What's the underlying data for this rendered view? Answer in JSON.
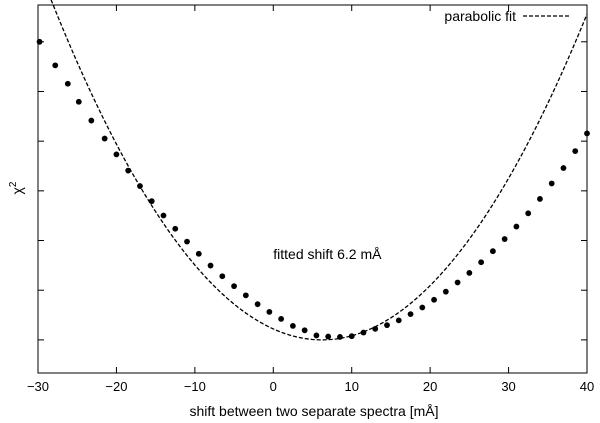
{
  "chart_data": {
    "type": "scatter",
    "title": "",
    "xlabel": "shift between two separate spectra [mÅ]",
    "ylabel_base": "χ",
    "ylabel_sup": "2",
    "xlim": [
      -30,
      40
    ],
    "ylim": [
      0,
      1
    ],
    "x_ticks": [
      -30,
      -20,
      -10,
      0,
      10,
      20,
      30,
      40
    ],
    "x_tick_labels": [
      "−30",
      "−20",
      "−10",
      "0",
      "10",
      "20",
      "30",
      "40"
    ],
    "y_ticks": [
      0.09,
      0.225,
      0.36,
      0.495,
      0.63,
      0.765,
      0.9
    ],
    "y_tick_labels_shown": false,
    "grid": false,
    "legend": {
      "position": "top-right",
      "entries": [
        {
          "label": "parabolic fit",
          "style": "dashed-line"
        }
      ]
    },
    "annotation": {
      "text": "fitted shift 6.2 mÅ",
      "x": 0,
      "y": 0.31
    },
    "fit": {
      "vertex_x": 6.2,
      "vertex_y": 0.09,
      "a": 0.000775,
      "color": "#000000"
    },
    "points": {
      "color": "#000000",
      "x": [
        -29.8,
        -27.8,
        -26.2,
        -24.8,
        -23.2,
        -21.5,
        -20,
        -18.5,
        -17,
        -15.5,
        -14,
        -12.5,
        -11,
        -9.5,
        -8,
        -6.5,
        -5,
        -3.5,
        -2,
        -0.5,
        1,
        2.5,
        4,
        5.5,
        7,
        8.5,
        10,
        11.5,
        13,
        14.5,
        16,
        17.5,
        19,
        20.5,
        22,
        23.5,
        25,
        26.5,
        28,
        29.5,
        31,
        32.5,
        34,
        35.5,
        37,
        38.5,
        40
      ],
      "y": [
        0.9,
        0.836,
        0.786,
        0.737,
        0.686,
        0.637,
        0.594,
        0.55,
        0.508,
        0.467,
        0.428,
        0.392,
        0.357,
        0.324,
        0.292,
        0.263,
        0.236,
        0.211,
        0.187,
        0.166,
        0.147,
        0.128,
        0.116,
        0.102,
        0.099,
        0.098,
        0.1,
        0.11,
        0.12,
        0.13,
        0.143,
        0.16,
        0.178,
        0.199,
        0.221,
        0.246,
        0.272,
        0.301,
        0.331,
        0.364,
        0.398,
        0.434,
        0.473,
        0.515,
        0.557,
        0.603,
        0.651
      ]
    }
  }
}
